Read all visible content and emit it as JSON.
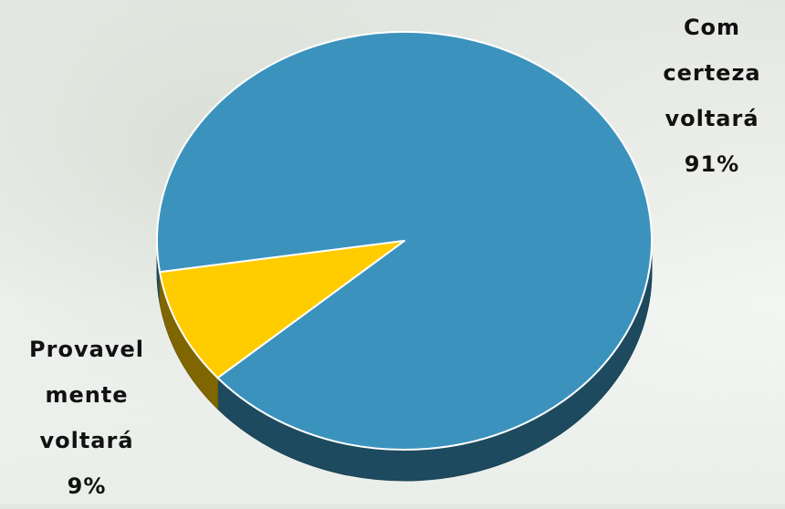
{
  "chart_data": {
    "type": "pie",
    "categories": [
      "Com certeza voltará",
      "Provavel mente voltará"
    ],
    "values": [
      91,
      9
    ],
    "value_labels": [
      "91%",
      "9%"
    ],
    "colors": [
      "#3b93bd",
      "#ffcc00"
    ]
  }
}
